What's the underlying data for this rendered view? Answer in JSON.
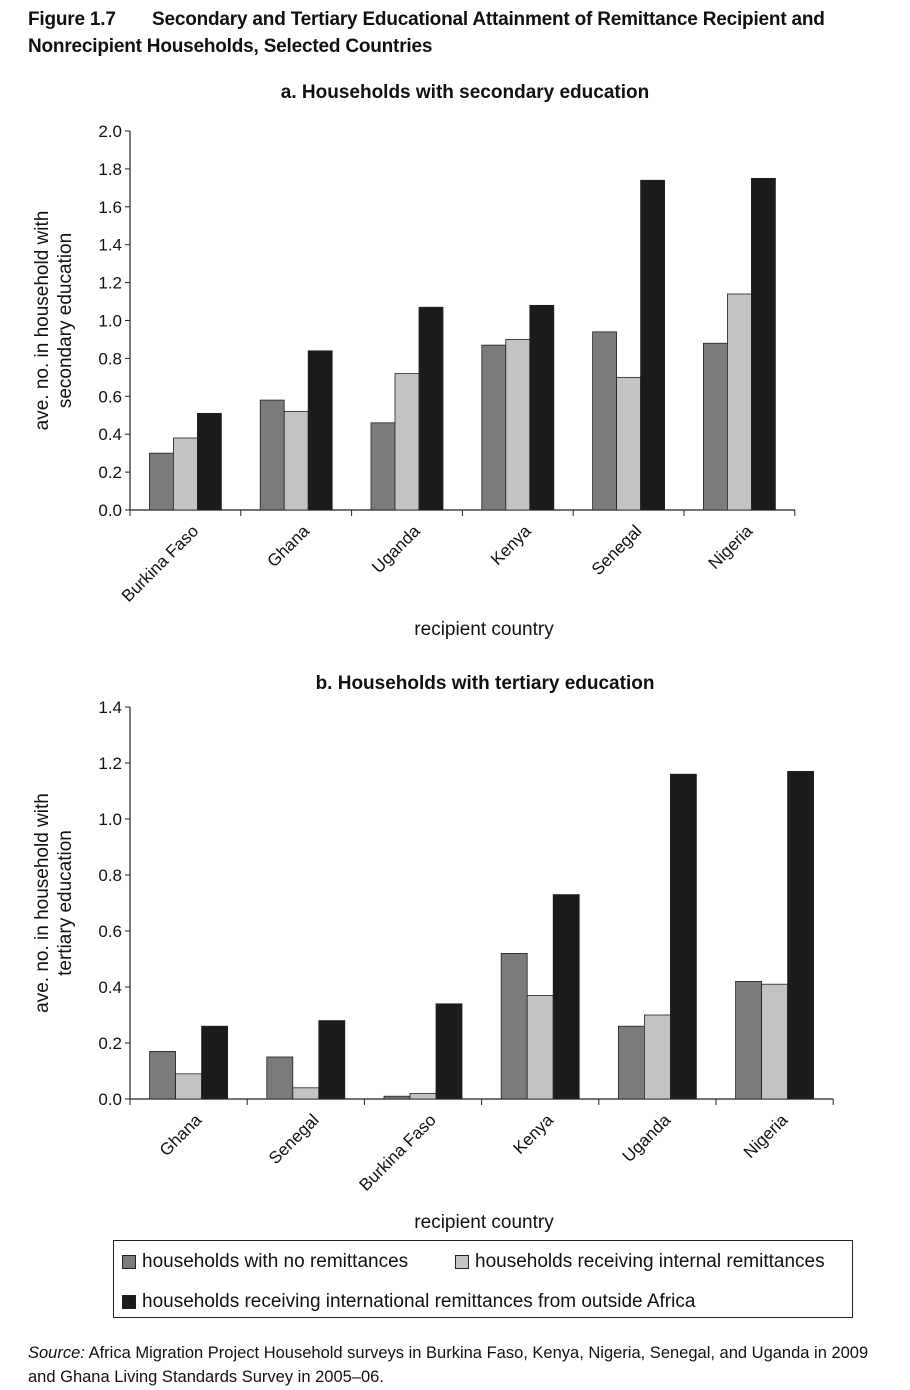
{
  "figure": {
    "number": "Figure 1.7",
    "title": "Secondary and Tertiary Educational Attainment of Remittance Recipient and Nonrecipient Households, Selected Countries"
  },
  "colors": {
    "no_remittances": "#7b7b7b",
    "internal": "#c3c3c3",
    "international": "#1b1b1b"
  },
  "legend": {
    "items": [
      "households with no remittances",
      "households receiving internal remittances",
      "households receiving international remittances from outside Africa"
    ]
  },
  "source": {
    "label": "Source:",
    "text": "Africa Migration Project Household surveys in Burkina Faso, Kenya, Nigeria, Senegal, and Uganda in 2009 and Ghana Living Standards Survey in 2005–06."
  },
  "chart_data": [
    {
      "type": "bar",
      "title": "a. Households with secondary education",
      "xlabel": "recipient country",
      "ylabel": "ave. no. in household with secondary education",
      "ylim": [
        0,
        2.0
      ],
      "yticks": [
        "0.0",
        "0.2",
        "0.4",
        "0.6",
        "0.8",
        "1.0",
        "1.2",
        "1.4",
        "1.6",
        "1.8",
        "2.0"
      ],
      "categories": [
        "Burkina Faso",
        "Ghana",
        "Uganda",
        "Kenya",
        "Senegal",
        "Nigeria"
      ],
      "series": [
        {
          "name": "households with no remittances",
          "values": [
            0.3,
            0.58,
            0.46,
            0.87,
            0.94,
            0.88
          ]
        },
        {
          "name": "households receiving internal remittances",
          "values": [
            0.38,
            0.52,
            0.72,
            0.9,
            0.7,
            1.14
          ]
        },
        {
          "name": "households receiving international remittances from outside Africa",
          "values": [
            0.51,
            0.84,
            1.07,
            1.08,
            1.74,
            1.75
          ]
        }
      ]
    },
    {
      "type": "bar",
      "title": "b. Households with tertiary education",
      "xlabel": "recipient country",
      "ylabel": "ave. no. in household with tertiary education",
      "ylim": [
        0,
        1.4
      ],
      "yticks": [
        "0.0",
        "0.2",
        "0.4",
        "0.6",
        "0.8",
        "1.0",
        "1.2",
        "1.4"
      ],
      "categories": [
        "Ghana",
        "Senegal",
        "Burkina Faso",
        "Kenya",
        "Uganda",
        "Nigeria"
      ],
      "series": [
        {
          "name": "households with no remittances",
          "values": [
            0.17,
            0.15,
            0.01,
            0.52,
            0.26,
            0.42
          ]
        },
        {
          "name": "households receiving internal remittances",
          "values": [
            0.09,
            0.04,
            0.02,
            0.37,
            0.3,
            0.41
          ]
        },
        {
          "name": "households receiving international remittances from outside Africa",
          "values": [
            0.26,
            0.28,
            0.34,
            0.73,
            1.16,
            1.17
          ]
        }
      ]
    }
  ]
}
